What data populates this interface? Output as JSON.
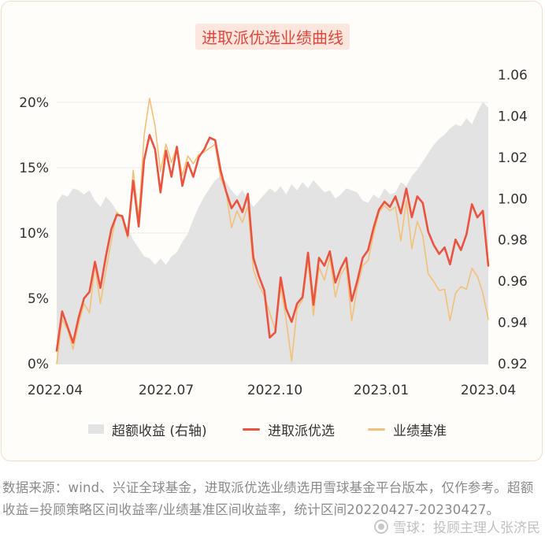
{
  "footnote": "数据来源：wind、兴证全球基金，进取派优选业绩选用雪球基金平台版本，仅作参考。超额收益=投顾策略区间收益率/业绩基准区间收益率，统计区间20220427-20230427。",
  "watermark": "雪球：投顾主理人张济民",
  "colors": {
    "excess": "#e3e3e3",
    "strategy": "#e9533f",
    "benchmark": "#f3c07a"
  },
  "chart_data": {
    "type": "line",
    "title": "进取派优选业绩曲线",
    "x_ticks": [
      "2022.04",
      "2022.07",
      "2022.10",
      "2023.01",
      "2023.04"
    ],
    "y_left": {
      "ticks": [
        "0%",
        "5%",
        "10%",
        "15%",
        "20%"
      ],
      "range": [
        0,
        20
      ]
    },
    "y_right": {
      "ticks": [
        "0.92",
        "0.94",
        "0.96",
        "0.98",
        "1.00",
        "1.02",
        "1.04",
        "1.06"
      ],
      "range": [
        0.92,
        1.06
      ]
    },
    "legend_placement": "bottom",
    "series": [
      {
        "name": "超额收益 (右轴)",
        "type": "area",
        "axis": "right",
        "values": [
          0.998,
          1.002,
          1.001,
          1.005,
          1.004,
          1.002,
          1.004,
          0.999,
          0.996,
          1.001,
          0.998,
          0.994,
          0.991,
          0.986,
          0.98,
          0.976,
          0.972,
          0.971,
          0.968,
          0.971,
          0.968,
          0.972,
          0.974,
          0.979,
          0.983,
          0.99,
          0.996,
          1.001,
          1.005,
          1.009,
          1.011,
          1.008,
          1.004,
          1.001,
          1.004,
          1.0,
          0.996,
          0.999,
          1.002,
          1.005,
          1.003,
          1.006,
          1.002,
          1.007,
          1.004,
          1.008,
          1.005,
          1.009,
          1.006,
          1.003,
          1.004,
          1.0,
          1.002,
          1.005,
          1.004,
          1.003,
          0.999,
          0.998,
          1.002,
          1.0,
          1.005,
          1.002,
          1.003,
          1.008,
          1.006,
          1.011,
          1.014,
          1.018,
          1.022,
          1.026,
          1.029,
          1.031,
          1.034,
          1.036,
          1.035,
          1.039,
          1.036,
          1.042,
          1.047,
          1.044
        ]
      },
      {
        "name": "进取派优选",
        "type": "line",
        "axis": "left",
        "values": [
          1.0,
          4.0,
          2.8,
          1.6,
          3.5,
          5.0,
          5.5,
          7.8,
          5.8,
          8.2,
          10.3,
          11.4,
          11.3,
          9.8,
          14.0,
          10.5,
          15.6,
          17.5,
          16.4,
          13.1,
          16.3,
          14.3,
          16.6,
          13.6,
          15.4,
          14.3,
          15.8,
          16.4,
          17.3,
          17.1,
          14.8,
          13.2,
          11.9,
          12.5,
          11.6,
          13.0,
          8.1,
          6.7,
          5.6,
          2.0,
          2.4,
          6.6,
          4.2,
          3.2,
          4.6,
          5.1,
          8.5,
          4.5,
          8.1,
          7.5,
          8.6,
          6.2,
          7.3,
          8.1,
          4.8,
          6.3,
          8.1,
          8.7,
          10.4,
          11.8,
          12.4,
          12.0,
          12.8,
          11.5,
          13.4,
          11.2,
          12.8,
          12.3,
          10.1,
          9.1,
          8.4,
          8.9,
          7.6,
          9.5,
          8.7,
          9.9,
          12.2,
          11.2,
          11.7,
          7.5
        ]
      },
      {
        "name": "业绩基准",
        "type": "line",
        "axis": "left",
        "values": [
          0.0,
          3.4,
          2.6,
          1.1,
          3.0,
          4.6,
          3.9,
          7.5,
          4.6,
          7.1,
          9.4,
          11.6,
          11.1,
          9.6,
          14.8,
          11.1,
          17.5,
          20.3,
          18.2,
          14.7,
          16.8,
          15.4,
          16.6,
          14.4,
          15.9,
          15.3,
          16.0,
          16.2,
          16.5,
          16.8,
          14.2,
          13.2,
          10.4,
          11.7,
          10.8,
          12.1,
          7.2,
          6.0,
          5.2,
          3.9,
          2.6,
          5.9,
          3.4,
          0.2,
          4.2,
          4.9,
          7.9,
          3.7,
          7.4,
          6.4,
          8.1,
          5.1,
          6.8,
          7.5,
          3.3,
          5.8,
          7.5,
          7.9,
          9.9,
          11.6,
          12.1,
          11.7,
          12.0,
          9.4,
          12.5,
          8.8,
          10.9,
          9.8,
          6.9,
          6.3,
          5.6,
          5.7,
          3.3,
          5.4,
          5.9,
          5.7,
          7.3,
          6.7,
          5.4,
          3.4
        ]
      }
    ]
  }
}
